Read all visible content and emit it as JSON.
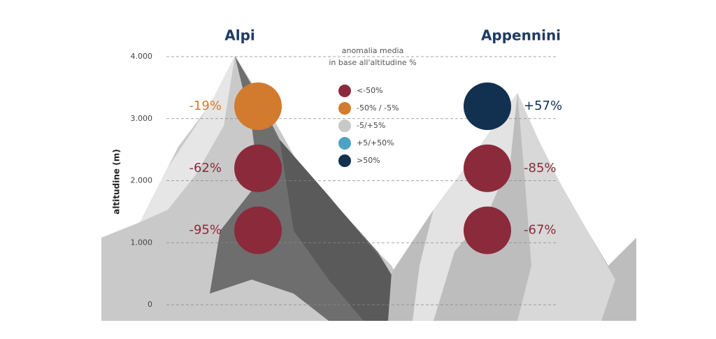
{
  "chart_data": {
    "type": "dot-column",
    "subtitle": [
      "anomalia media",
      "in base all'altitudine %"
    ],
    "y_label": "altitudine (m)",
    "ylim": [
      0,
      4000
    ],
    "yticks": [
      0,
      {
        "value": 1000,
        "label": "1.000"
      },
      {
        "value": 2000,
        "label": "2.000"
      },
      {
        "value": 3000,
        "label": "3.000"
      },
      {
        "value": 4000,
        "label": "4.000"
      }
    ],
    "legend": [
      {
        "label": "<-50%",
        "color": "#8b2a3b"
      },
      {
        "label": "-50% / -5%",
        "color": "#d27a2e"
      },
      {
        "label": "-5/+5%",
        "color": "#c8c8c8"
      },
      {
        "label": "+5/+50%",
        "color": "#4ca3c6"
      },
      {
        "label": ">50%",
        "color": "#12304f"
      }
    ],
    "series": [
      {
        "name": "Alpi",
        "altitudes": [
          3200,
          2200,
          1200
        ],
        "values": [
          -19,
          -62,
          -95
        ],
        "value_labels": [
          "-19%",
          "-62%",
          "-95%"
        ],
        "colors": [
          "#d27a2e",
          "#8b2a3b",
          "#8b2a3b"
        ]
      },
      {
        "name": "Appennini",
        "altitudes": [
          3200,
          2200,
          1200
        ],
        "values": [
          57,
          -85,
          -67
        ],
        "value_labels": [
          "+57%",
          "-85%",
          "-67%"
        ],
        "colors": [
          "#12304f",
          "#8b2a3b",
          "#8b2a3b"
        ]
      }
    ]
  }
}
